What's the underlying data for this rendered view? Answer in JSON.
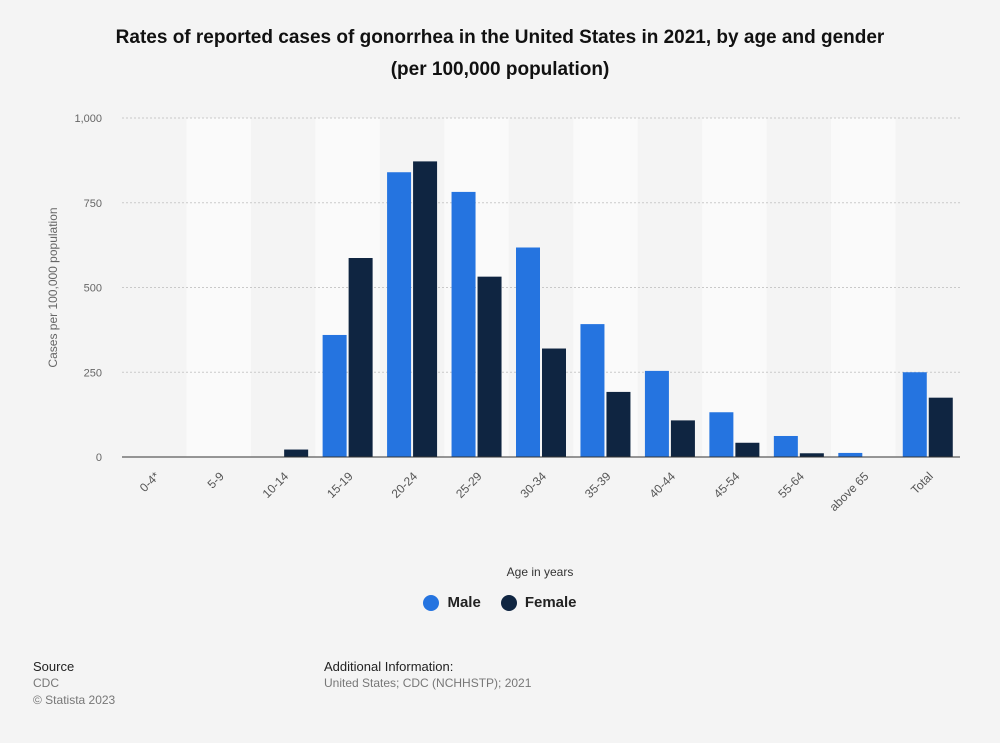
{
  "chart_data": {
    "type": "bar",
    "title": "Rates of reported cases of gonorrhea in the United States in 2021, by age and gender",
    "subtitle": "(per 100,000 population)",
    "xlabel": "Age in years",
    "ylabel": "Cases per 100,000 population",
    "ylim": [
      0,
      1000
    ],
    "yticks": [
      0,
      250,
      500,
      750,
      1000
    ],
    "ytick_labels": [
      "0",
      "250",
      "500",
      "750",
      "1,000"
    ],
    "grid": true,
    "legend_position": "bottom",
    "categories": [
      "0-4*",
      "5-9",
      "10-14",
      "15-19",
      "20-24",
      "25-29",
      "30-34",
      "35-39",
      "40-44",
      "45-54",
      "55-64",
      "above 65",
      "Total"
    ],
    "series": [
      {
        "name": "Male",
        "color": "#2574e0",
        "values": [
          0,
          0,
          1,
          360,
          840,
          782,
          618,
          392,
          254,
          132,
          62,
          12,
          250
        ]
      },
      {
        "name": "Female",
        "color": "#0f2541",
        "values": [
          1,
          1,
          22,
          587,
          872,
          532,
          320,
          192,
          108,
          42,
          11,
          1,
          175
        ]
      }
    ]
  },
  "footer": {
    "source_heading": "Source",
    "source_name": "CDC",
    "copyright": "© Statista 2023",
    "info_heading": "Additional Information:",
    "info_text": "United States; CDC (NCHHSTP); 2021"
  }
}
